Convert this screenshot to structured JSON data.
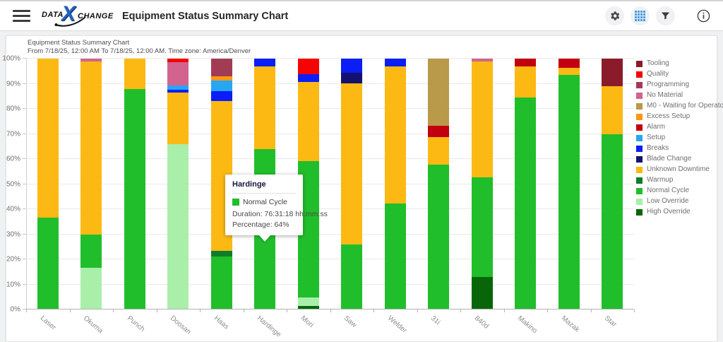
{
  "header": {
    "logo": {
      "part1": "DATA",
      "x": "X",
      "part2": "CHANGE"
    },
    "title": "Equipment Status Summary Chart",
    "icons": {
      "settings": "gear-icon",
      "views": "grid-icon",
      "filter": "funnel-icon",
      "info": "info-icon"
    }
  },
  "chart_header": {
    "title": "Equipment Status Summary Chart",
    "subtitle": "From 7/18/25, 12:00 AM To 7/18/25, 12:00 AM. Time zone: America/Denver"
  },
  "tooltip": {
    "title": "Hardinge",
    "series": "Normal Cycle",
    "duration": "Duration: 76:31:18 hh:mm:ss",
    "percentage": "Percentage: 64%",
    "swatch_color": "#21BE2B"
  },
  "chart_data": {
    "type": "bar",
    "stacked": true,
    "title": "Equipment Status Summary Chart",
    "xlabel": "",
    "ylabel": "",
    "ylim": [
      0,
      100
    ],
    "y_ticks": [
      "0%",
      "10%",
      "20%",
      "30%",
      "40%",
      "50%",
      "60%",
      "70%",
      "80%",
      "90%",
      "100%"
    ],
    "grid": true,
    "legend_position": "right",
    "statuses": [
      {
        "name": "Tooling",
        "color": "#8B1B2B"
      },
      {
        "name": "Quality",
        "color": "#F60404"
      },
      {
        "name": "Programming",
        "color": "#A23C55"
      },
      {
        "name": "No Material",
        "color": "#D2638E"
      },
      {
        "name": "M0 - Waiting for Operator",
        "color": "#B9994A"
      },
      {
        "name": "Excess Setup",
        "color": "#FA9816"
      },
      {
        "name": "Alarm",
        "color": "#C3000F"
      },
      {
        "name": "Setup",
        "color": "#27A6F4"
      },
      {
        "name": "Breaks",
        "color": "#0A1EF5"
      },
      {
        "name": "Blade Change",
        "color": "#13126E"
      },
      {
        "name": "Unknown Downtime",
        "color": "#FCB913"
      },
      {
        "name": "Warmup",
        "color": "#0E7D2B"
      },
      {
        "name": "Normal Cycle",
        "color": "#21BE2B"
      },
      {
        "name": "Low Override",
        "color": "#A9EFA9"
      },
      {
        "name": "High Override",
        "color": "#086608"
      }
    ],
    "categories": [
      "Laser",
      "Okuma",
      "Punch",
      "Doosan",
      "Haas",
      "Hardinge",
      "Mori",
      "Saw",
      "Welder",
      "31i",
      "840d",
      "Makino",
      "Mazak",
      "Star"
    ],
    "highlighted": {
      "category": "Hardinge",
      "status": "Normal Cycle"
    },
    "bars": [
      {
        "name": "Laser",
        "segments": [
          {
            "status": "Normal Cycle",
            "pct": 36.5
          },
          {
            "status": "Unknown Downtime",
            "pct": 63.5
          }
        ]
      },
      {
        "name": "Okuma",
        "segments": [
          {
            "status": "Low Override",
            "pct": 16.5
          },
          {
            "status": "Normal Cycle",
            "pct": 13.5
          },
          {
            "status": "Unknown Downtime",
            "pct": 69
          },
          {
            "status": "No Material",
            "pct": 1
          }
        ]
      },
      {
        "name": "Punch",
        "segments": [
          {
            "status": "Normal Cycle",
            "pct": 88
          },
          {
            "status": "Unknown Downtime",
            "pct": 12
          }
        ]
      },
      {
        "name": "Doosan",
        "segments": [
          {
            "status": "Low Override",
            "pct": 66
          },
          {
            "status": "Unknown Downtime",
            "pct": 20.5
          },
          {
            "status": "Breaks",
            "pct": 1
          },
          {
            "status": "Setup",
            "pct": 1.8
          },
          {
            "status": "No Material",
            "pct": 9.4
          },
          {
            "status": "Quality",
            "pct": 1.3
          }
        ]
      },
      {
        "name": "Haas",
        "segments": [
          {
            "status": "Normal Cycle",
            "pct": 21
          },
          {
            "status": "Warmup",
            "pct": 2.5
          },
          {
            "status": "Unknown Downtime",
            "pct": 59.5
          },
          {
            "status": "Breaks",
            "pct": 4
          },
          {
            "status": "Setup",
            "pct": 4.3
          },
          {
            "status": "Excess Setup",
            "pct": 1.7
          },
          {
            "status": "Programming",
            "pct": 7
          }
        ]
      },
      {
        "name": "Hardinge",
        "segments": [
          {
            "status": "Normal Cycle",
            "pct": 64
          },
          {
            "status": "Unknown Downtime",
            "pct": 33
          },
          {
            "status": "Breaks",
            "pct": 3
          }
        ]
      },
      {
        "name": "Mori",
        "segments": [
          {
            "status": "High Override",
            "pct": 1.5
          },
          {
            "status": "Low Override",
            "pct": 3.3
          },
          {
            "status": "Normal Cycle",
            "pct": 54.4
          },
          {
            "status": "Unknown Downtime",
            "pct": 31.5
          },
          {
            "status": "Breaks",
            "pct": 3
          },
          {
            "status": "Quality",
            "pct": 6.3
          }
        ]
      },
      {
        "name": "Saw",
        "segments": [
          {
            "status": "Normal Cycle",
            "pct": 26
          },
          {
            "status": "Unknown Downtime",
            "pct": 64.2
          },
          {
            "status": "Blade Change",
            "pct": 4.2
          },
          {
            "status": "Breaks",
            "pct": 5.6
          }
        ]
      },
      {
        "name": "Welder",
        "segments": [
          {
            "status": "Normal Cycle",
            "pct": 42.3
          },
          {
            "status": "Unknown Downtime",
            "pct": 54.7
          },
          {
            "status": "Breaks",
            "pct": 3
          }
        ]
      },
      {
        "name": "31i",
        "segments": [
          {
            "status": "Normal Cycle",
            "pct": 57.7
          },
          {
            "status": "Unknown Downtime",
            "pct": 11.1
          },
          {
            "status": "Alarm",
            "pct": 4.5
          },
          {
            "status": "M0 - Waiting for Operator",
            "pct": 26.7
          }
        ]
      },
      {
        "name": "840d",
        "segments": [
          {
            "status": "High Override",
            "pct": 13
          },
          {
            "status": "Normal Cycle",
            "pct": 39.7
          },
          {
            "status": "Unknown Downtime",
            "pct": 46.3
          },
          {
            "status": "No Material",
            "pct": 1
          }
        ]
      },
      {
        "name": "Makino",
        "segments": [
          {
            "status": "Normal Cycle",
            "pct": 84.6
          },
          {
            "status": "Unknown Downtime",
            "pct": 12.2
          },
          {
            "status": "Alarm",
            "pct": 3.2
          }
        ]
      },
      {
        "name": "Mazak",
        "segments": [
          {
            "status": "Normal Cycle",
            "pct": 93.5
          },
          {
            "status": "Unknown Downtime",
            "pct": 2.8
          },
          {
            "status": "Alarm",
            "pct": 3.7
          }
        ]
      },
      {
        "name": "Star",
        "segments": [
          {
            "status": "Normal Cycle",
            "pct": 70
          },
          {
            "status": "Unknown Downtime",
            "pct": 19
          },
          {
            "status": "Tooling",
            "pct": 11
          }
        ]
      }
    ]
  }
}
